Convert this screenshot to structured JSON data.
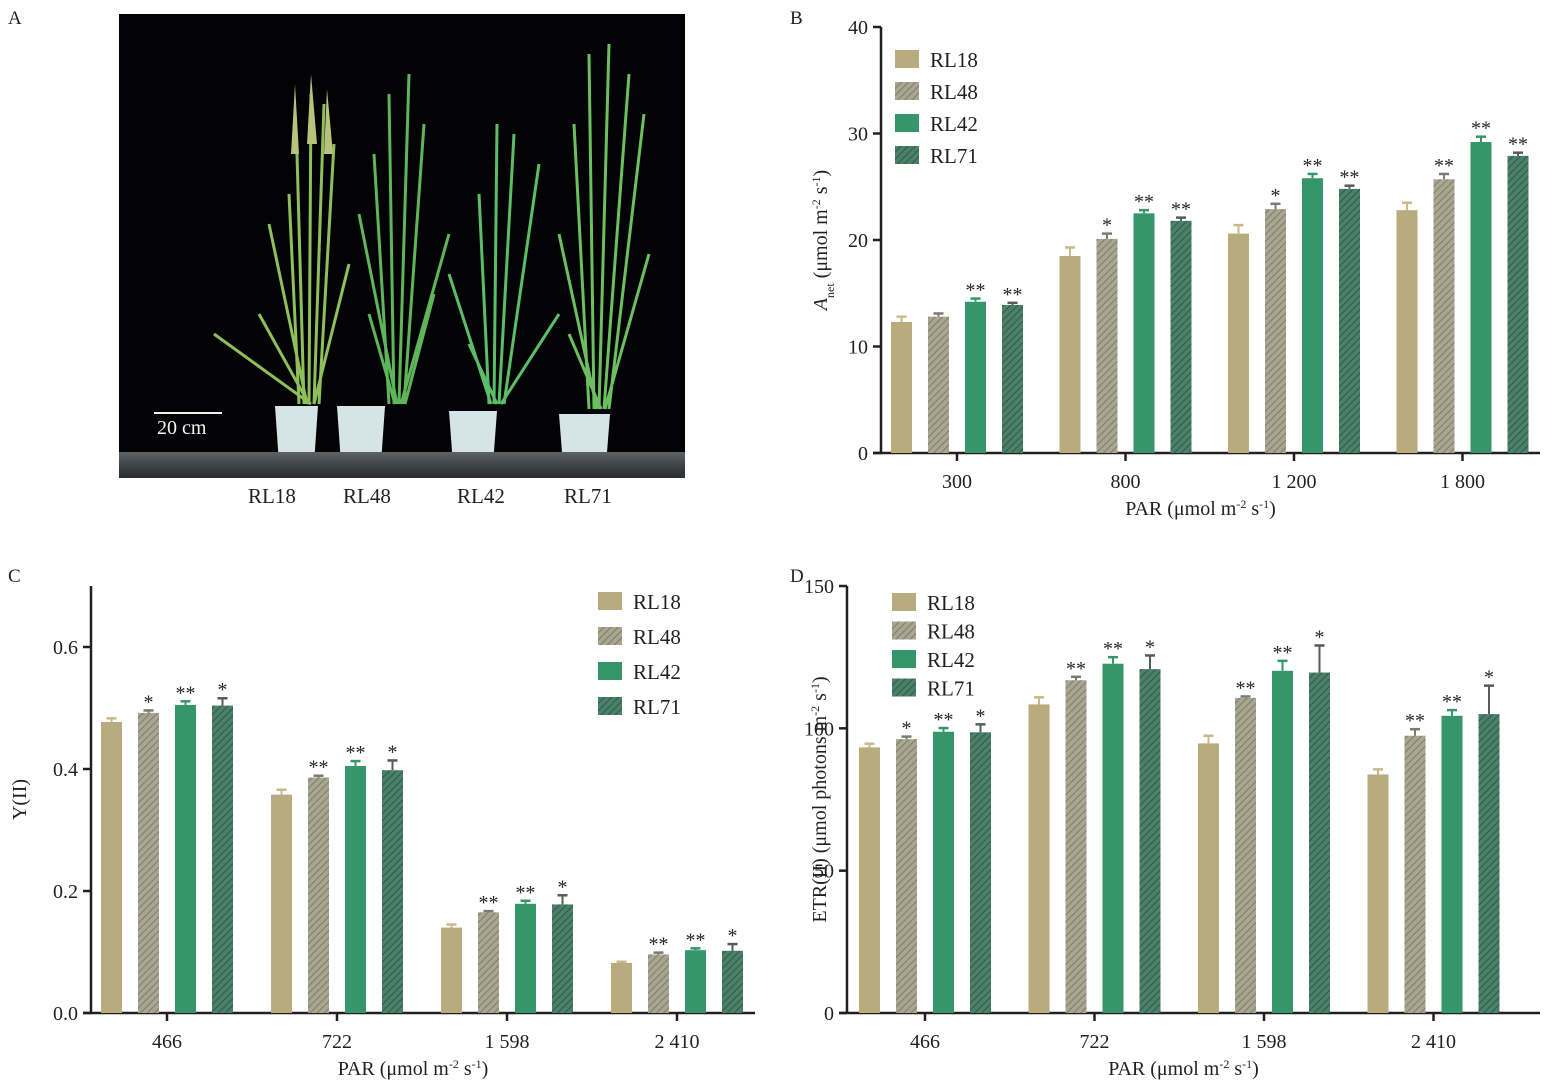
{
  "panels": {
    "A": {
      "label": "A",
      "scale_bar": "20 cm",
      "plant_labels": [
        "RL18",
        "RL48",
        "RL42",
        "RL71"
      ]
    },
    "B": {
      "label": "B"
    },
    "C": {
      "label": "C"
    },
    "D": {
      "label": "D"
    }
  },
  "series_style": [
    {
      "name": "RL18",
      "color": "#b8ab7e",
      "hatched": false
    },
    {
      "name": "RL48",
      "color": "#a9a68f",
      "stripe": "#7c7b6d",
      "hatched": true
    },
    {
      "name": "RL42",
      "color": "#35966a",
      "hatched": false
    },
    {
      "name": "RL71",
      "color": "#4b806a",
      "stripe": "#2f5848",
      "hatched": true
    }
  ],
  "chart_data": [
    {
      "id": "B",
      "type": "bar",
      "title": "",
      "xlabel": "PAR (μmol m-2 s-1)",
      "ylabel": "Anet (μmol m-2 s-1)",
      "ylim": [
        0,
        40
      ],
      "yticks": [
        0,
        10,
        20,
        30,
        40
      ],
      "categories": [
        "300",
        "800",
        "1 200",
        "1 800"
      ],
      "legend": "top-left",
      "series": [
        {
          "name": "RL18",
          "values": [
            12.3,
            18.5,
            20.6,
            22.8
          ],
          "errors": [
            0.5,
            0.8,
            0.8,
            0.7
          ],
          "sig": [
            "",
            "",
            "",
            ""
          ]
        },
        {
          "name": "RL48",
          "values": [
            12.8,
            20.1,
            22.9,
            25.7
          ],
          "errors": [
            0.3,
            0.5,
            0.5,
            0.5
          ],
          "sig": [
            "",
            "*",
            "*",
            "**"
          ]
        },
        {
          "name": "RL42",
          "values": [
            14.2,
            22.5,
            25.8,
            29.2
          ],
          "errors": [
            0.3,
            0.3,
            0.4,
            0.5
          ],
          "sig": [
            "**",
            "**",
            "**",
            "**"
          ]
        },
        {
          "name": "RL71",
          "values": [
            13.9,
            21.8,
            24.8,
            27.9
          ],
          "errors": [
            0.2,
            0.3,
            0.3,
            0.3
          ],
          "sig": [
            "**",
            "**",
            "**",
            "**"
          ]
        }
      ]
    },
    {
      "id": "C",
      "type": "bar",
      "title": "",
      "xlabel": "PAR (μmol m-2 s-1)",
      "ylabel": "Y(II)",
      "ylim": [
        0,
        0.7
      ],
      "yticks": [
        0.0,
        0.2,
        0.4,
        0.6
      ],
      "ytick_labels": [
        "0.0",
        "0.2",
        "0.4",
        "0.6"
      ],
      "categories": [
        "466",
        "722",
        "1 598",
        "2 410"
      ],
      "legend": "top-right",
      "series": [
        {
          "name": "RL18",
          "values": [
            0.477,
            0.358,
            0.14,
            0.082
          ],
          "errors": [
            0.006,
            0.008,
            0.005,
            0.002
          ],
          "sig": [
            "",
            "",
            "",
            ""
          ]
        },
        {
          "name": "RL48",
          "values": [
            0.492,
            0.386,
            0.165,
            0.096
          ],
          "errors": [
            0.004,
            0.003,
            0.002,
            0.003
          ],
          "sig": [
            "*",
            "**",
            "**",
            "**"
          ]
        },
        {
          "name": "RL42",
          "values": [
            0.505,
            0.405,
            0.179,
            0.103
          ],
          "errors": [
            0.006,
            0.008,
            0.005,
            0.003
          ],
          "sig": [
            "**",
            "**",
            "**",
            "**"
          ]
        },
        {
          "name": "RL71",
          "values": [
            0.504,
            0.398,
            0.178,
            0.102
          ],
          "errors": [
            0.012,
            0.016,
            0.015,
            0.011
          ],
          "sig": [
            "*",
            "*",
            "*",
            "*"
          ]
        }
      ]
    },
    {
      "id": "D",
      "type": "bar",
      "title": "",
      "xlabel": "PAR (μmol m-2 s-1)",
      "ylabel": "ETR(II) (μmol photons m-2 s-1)",
      "ylim": [
        0,
        150
      ],
      "yticks": [
        0,
        50,
        100,
        150
      ],
      "categories": [
        "466",
        "722",
        "1 598",
        "2 410"
      ],
      "legend": "top-left",
      "series": [
        {
          "name": "RL18",
          "values": [
            93.3,
            108.4,
            94.7,
            83.8
          ],
          "errors": [
            1.3,
            2.5,
            2.7,
            1.8
          ],
          "sig": [
            "",
            "",
            "",
            ""
          ]
        },
        {
          "name": "RL48",
          "values": [
            96.2,
            116.9,
            110.7,
            97.4
          ],
          "errors": [
            0.9,
            1.2,
            0.5,
            2.3
          ],
          "sig": [
            "*",
            "**",
            "**",
            "**"
          ]
        },
        {
          "name": "RL42",
          "values": [
            98.8,
            122.7,
            120.2,
            104.4
          ],
          "errors": [
            1.3,
            2.3,
            3.5,
            2.0
          ],
          "sig": [
            "**",
            "**",
            "**",
            "**"
          ]
        },
        {
          "name": "RL71",
          "values": [
            98.6,
            120.8,
            119.6,
            105.0
          ],
          "errors": [
            2.8,
            4.8,
            9.5,
            10.0
          ],
          "sig": [
            "*",
            "*",
            "*",
            "*"
          ]
        }
      ]
    }
  ]
}
